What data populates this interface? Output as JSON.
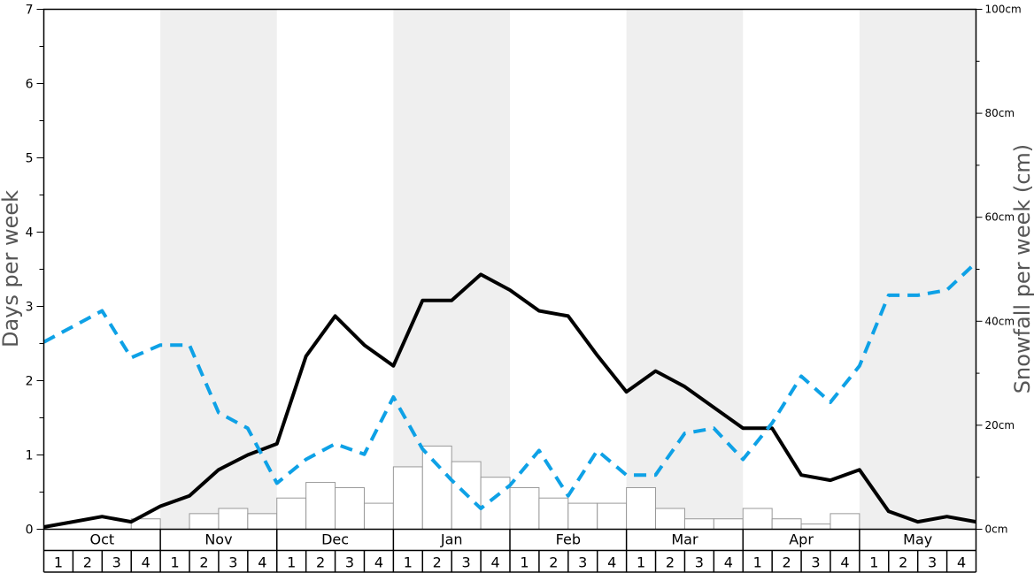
{
  "chart_data": {
    "type": "line",
    "ylabel": "Days per week",
    "y2label": "Snowfall per week (cm)",
    "ylim": [
      0,
      7
    ],
    "y2lim": [
      0,
      100
    ],
    "yticks": [
      "0",
      "1",
      "2",
      "3",
      "4",
      "5",
      "6",
      "7"
    ],
    "y2ticks": [
      "0cm",
      "20cm",
      "40cm",
      "60cm",
      "80cm",
      "100cm"
    ],
    "months": [
      "Oct",
      "Nov",
      "Dec",
      "Jan",
      "Feb",
      "Mar",
      "Apr",
      "May"
    ],
    "weeks": [
      "1",
      "2",
      "3",
      "4"
    ],
    "shaded_months": [
      "Nov",
      "Jan",
      "Mar",
      "May"
    ],
    "colors": {
      "solid": "#000000",
      "dashed": "#0ea1e6",
      "bar_fill": "#ffffff",
      "bar_stroke": "#999999",
      "shade": "#efefef"
    },
    "series": [
      {
        "style": "solid",
        "axis": "left",
        "values": [
          0.03,
          0.1,
          0.17,
          0.1,
          0.31,
          0.45,
          0.8,
          1.0,
          1.15,
          2.33,
          2.87,
          2.48,
          2.2,
          3.08,
          3.08,
          3.43,
          3.22,
          2.94,
          2.87,
          2.34,
          1.85,
          2.13,
          1.92,
          1.64,
          1.36,
          1.36,
          0.73,
          0.66,
          0.8,
          0.24,
          0.1,
          0.17,
          0.1
        ]
      },
      {
        "style": "dashed",
        "axis": "left",
        "values": [
          2.52,
          2.73,
          2.94,
          2.31,
          2.48,
          2.48,
          1.57,
          1.36,
          0.62,
          0.94,
          1.15,
          1.01,
          1.78,
          1.08,
          0.66,
          0.28,
          0.59,
          1.06,
          0.45,
          1.06,
          0.73,
          0.73,
          1.29,
          1.36,
          0.94,
          1.43,
          2.06,
          1.71,
          2.2,
          3.15,
          3.15,
          3.22,
          3.59
        ]
      },
      {
        "type": "bar",
        "axis": "right",
        "values": [
          0,
          0,
          0,
          2,
          0,
          3,
          4,
          3,
          6,
          9,
          8,
          5,
          12,
          16,
          13,
          10,
          8,
          6,
          5,
          5,
          8,
          4,
          2,
          2,
          4,
          2,
          1,
          3,
          0,
          0,
          0,
          0
        ]
      }
    ]
  }
}
